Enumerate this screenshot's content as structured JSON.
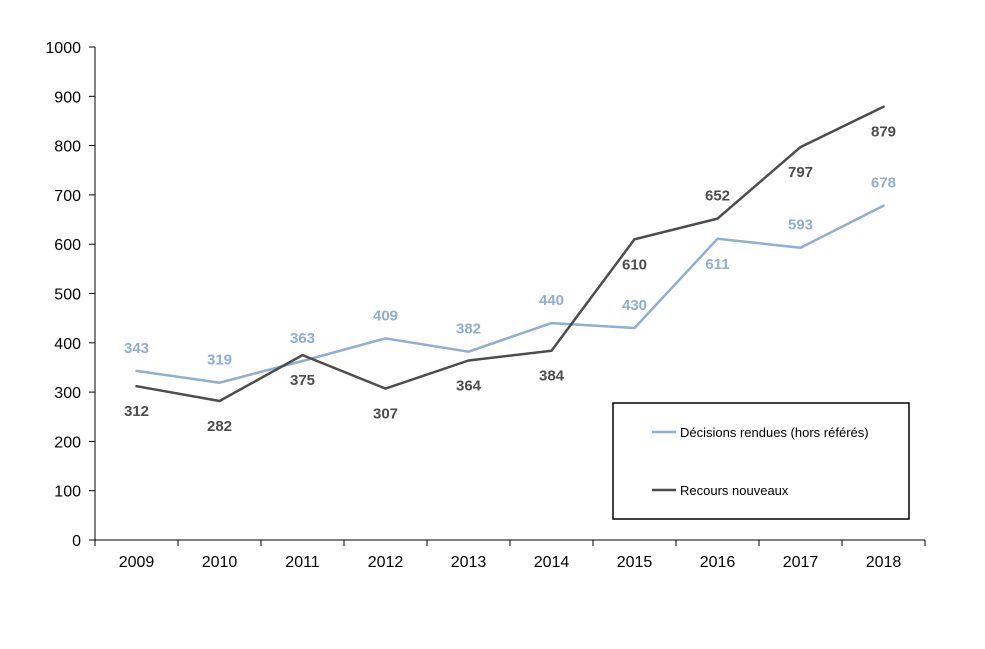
{
  "chart_data": {
    "type": "line",
    "title": "",
    "xlabel": "",
    "ylabel": "",
    "categories": [
      "2009",
      "2010",
      "2011",
      "2012",
      "2013",
      "2014",
      "2015",
      "2016",
      "2017",
      "2018"
    ],
    "ylim": [
      0,
      1000
    ],
    "yticks": [
      0,
      100,
      200,
      300,
      400,
      500,
      600,
      700,
      800,
      900,
      1000
    ],
    "grid": false,
    "legend_position": "bottom-right",
    "series": [
      {
        "name": "Décisions rendues (hors référés)",
        "color": "#8eaed4",
        "values": [
          343,
          319,
          363,
          409,
          382,
          440,
          430,
          611,
          593,
          678
        ],
        "label_positions": [
          "above",
          "above",
          "above",
          "above",
          "above",
          "above",
          "above",
          "below",
          "above",
          "above"
        ]
      },
      {
        "name": "Recours nouveaux",
        "color": "#4d4d4d",
        "values": [
          312,
          282,
          375,
          307,
          364,
          384,
          610,
          652,
          797,
          879
        ],
        "label_positions": [
          "below",
          "below",
          "below",
          "below",
          "below",
          "below",
          "below",
          "above",
          "below",
          "below"
        ]
      }
    ]
  }
}
